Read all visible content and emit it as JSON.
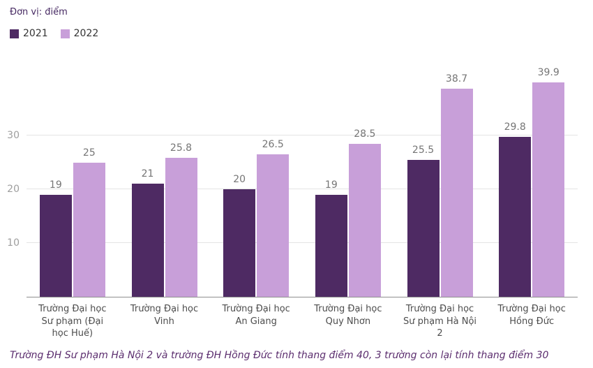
{
  "header": {
    "unit_label": "Đơn vị: điểm"
  },
  "footnote": "Trường ĐH Sư phạm Hà Nội 2 và trường ĐH Hồng Đức tính thang điểm 40, 3 trường còn lại tính thang điểm 30",
  "colors": {
    "series_2021": "#4e2a63",
    "series_2022": "#c89fd9",
    "grid": "#e4e4e4",
    "axis": "#8f8f8f",
    "tick_text": "#9e9e9e",
    "value_text": "#757575",
    "category_text": "#4d4d4d",
    "footnote_text": "#5b2d6e",
    "unit_text": "#472a63"
  },
  "chart_data": {
    "type": "bar",
    "title": "",
    "xlabel": "",
    "ylabel": "Đơn vị: điểm",
    "categories": [
      "Trường Đại học Sư phạm (Đại học Huế)",
      "Trường Đại học Vinh",
      "Trường Đại học An Giang",
      "Trường Đại học Quy Nhơn",
      "Trường Đại học Sư phạm Hà Nội 2",
      "Trường Đại học Hồng Đức"
    ],
    "series": [
      {
        "name": "2021",
        "color": "#4e2a63",
        "values": [
          19,
          21,
          20,
          19,
          25.5,
          29.8
        ]
      },
      {
        "name": "2022",
        "color": "#c89fd9",
        "values": [
          25,
          25.8,
          26.5,
          28.5,
          38.7,
          39.9
        ]
      }
    ],
    "yticks": [
      10,
      20,
      30
    ],
    "ylim": [
      0,
      44
    ],
    "grid": true,
    "legend_position": "top-left"
  }
}
